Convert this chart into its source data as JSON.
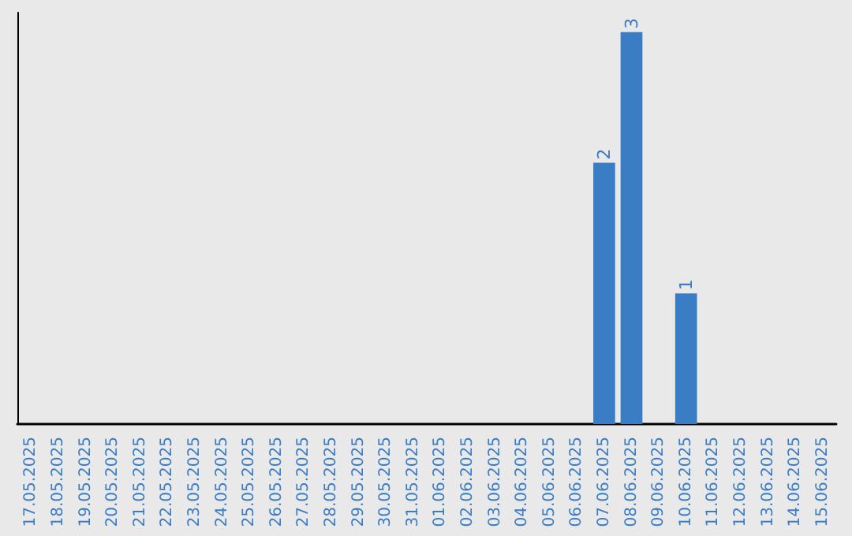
{
  "chart_data": {
    "type": "bar",
    "categories": [
      "17.05.2025",
      "18.05.2025",
      "19.05.2025",
      "20.05.2025",
      "21.05.2025",
      "22.05.2025",
      "23.05.2025",
      "24.05.2025",
      "25.05.2025",
      "26.05.2025",
      "27.05.2025",
      "28.05.2025",
      "29.05.2025",
      "30.05.2025",
      "31.05.2025",
      "01.06.2025",
      "02.06.2025",
      "03.06.2025",
      "04.06.2025",
      "05.06.2025",
      "06.06.2025",
      "07.06.2025",
      "08.06.2025",
      "09.06.2025",
      "10.06.2025",
      "11.06.2025",
      "12.06.2025",
      "13.06.2025",
      "14.06.2025",
      "15.06.2025"
    ],
    "values": [
      null,
      null,
      null,
      null,
      null,
      null,
      null,
      null,
      null,
      null,
      null,
      null,
      null,
      null,
      null,
      null,
      null,
      null,
      null,
      null,
      null,
      2,
      3,
      null,
      1,
      null,
      null,
      null,
      null,
      null
    ],
    "color": "#3b7dc4",
    "data_labels": true
  }
}
